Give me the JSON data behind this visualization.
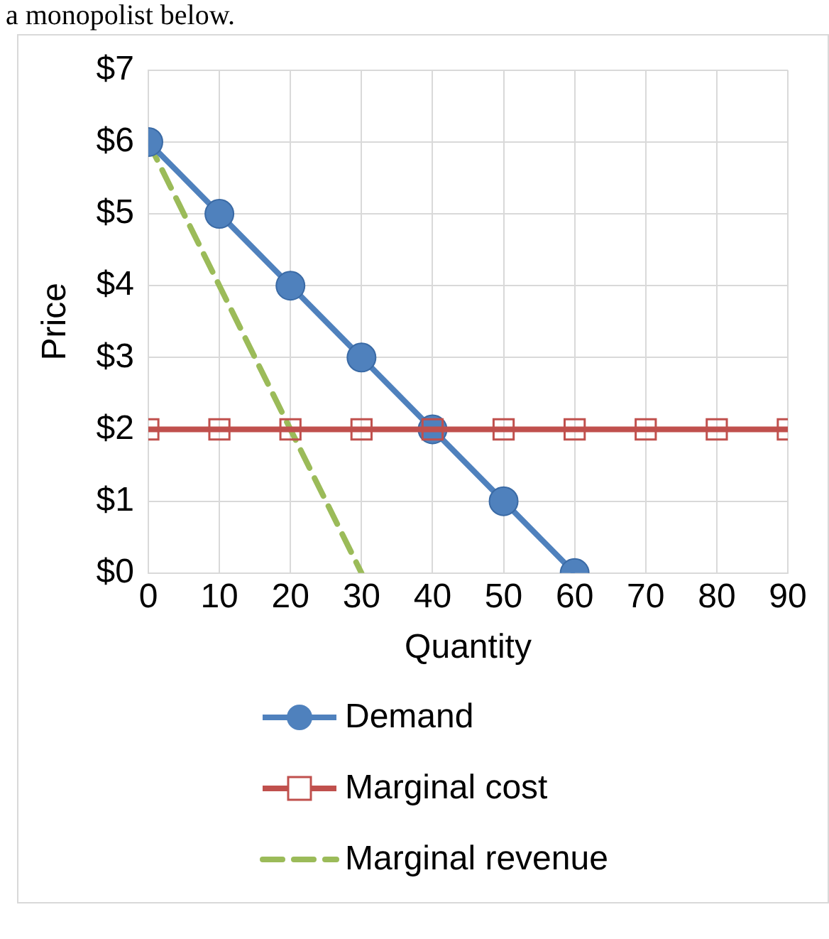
{
  "chart_data": {
    "type": "line",
    "xlabel": "Quantity",
    "ylabel": "Price",
    "annotations": [
      "a monopolist below."
    ],
    "xlim": [
      0,
      90
    ],
    "xticks": [
      0,
      10,
      20,
      30,
      40,
      50,
      60,
      70,
      80,
      90
    ],
    "ylim": [
      0,
      7
    ],
    "yticks": [
      {
        "value": 0,
        "label": "$0"
      },
      {
        "value": 1,
        "label": "$1"
      },
      {
        "value": 2,
        "label": "$2"
      },
      {
        "value": 3,
        "label": "$3"
      },
      {
        "value": 4,
        "label": "$4"
      },
      {
        "value": 5,
        "label": "$5"
      },
      {
        "value": 6,
        "label": "$6"
      },
      {
        "value": 7,
        "label": "$7"
      }
    ],
    "grid": true,
    "legend": "bottom",
    "series": [
      {
        "name": "Demand",
        "color": "#4f81bd",
        "marker": "circle",
        "line_style": "solid",
        "x": [
          0,
          10,
          20,
          30,
          40,
          50,
          60
        ],
        "values": [
          6,
          5,
          4,
          3,
          2,
          1,
          0
        ]
      },
      {
        "name": "Marginal cost",
        "color": "#c0504d",
        "marker": "square",
        "line_style": "solid",
        "x": [
          0,
          10,
          20,
          30,
          40,
          50,
          60,
          70,
          80,
          90
        ],
        "values": [
          2,
          2,
          2,
          2,
          2,
          2,
          2,
          2,
          2,
          2
        ]
      },
      {
        "name": "Marginal revenue",
        "color": "#9bbb59",
        "marker": "none",
        "line_style": "dashed",
        "x": [
          0,
          10,
          20,
          30
        ],
        "values": [
          6,
          4,
          2,
          0
        ]
      }
    ]
  }
}
